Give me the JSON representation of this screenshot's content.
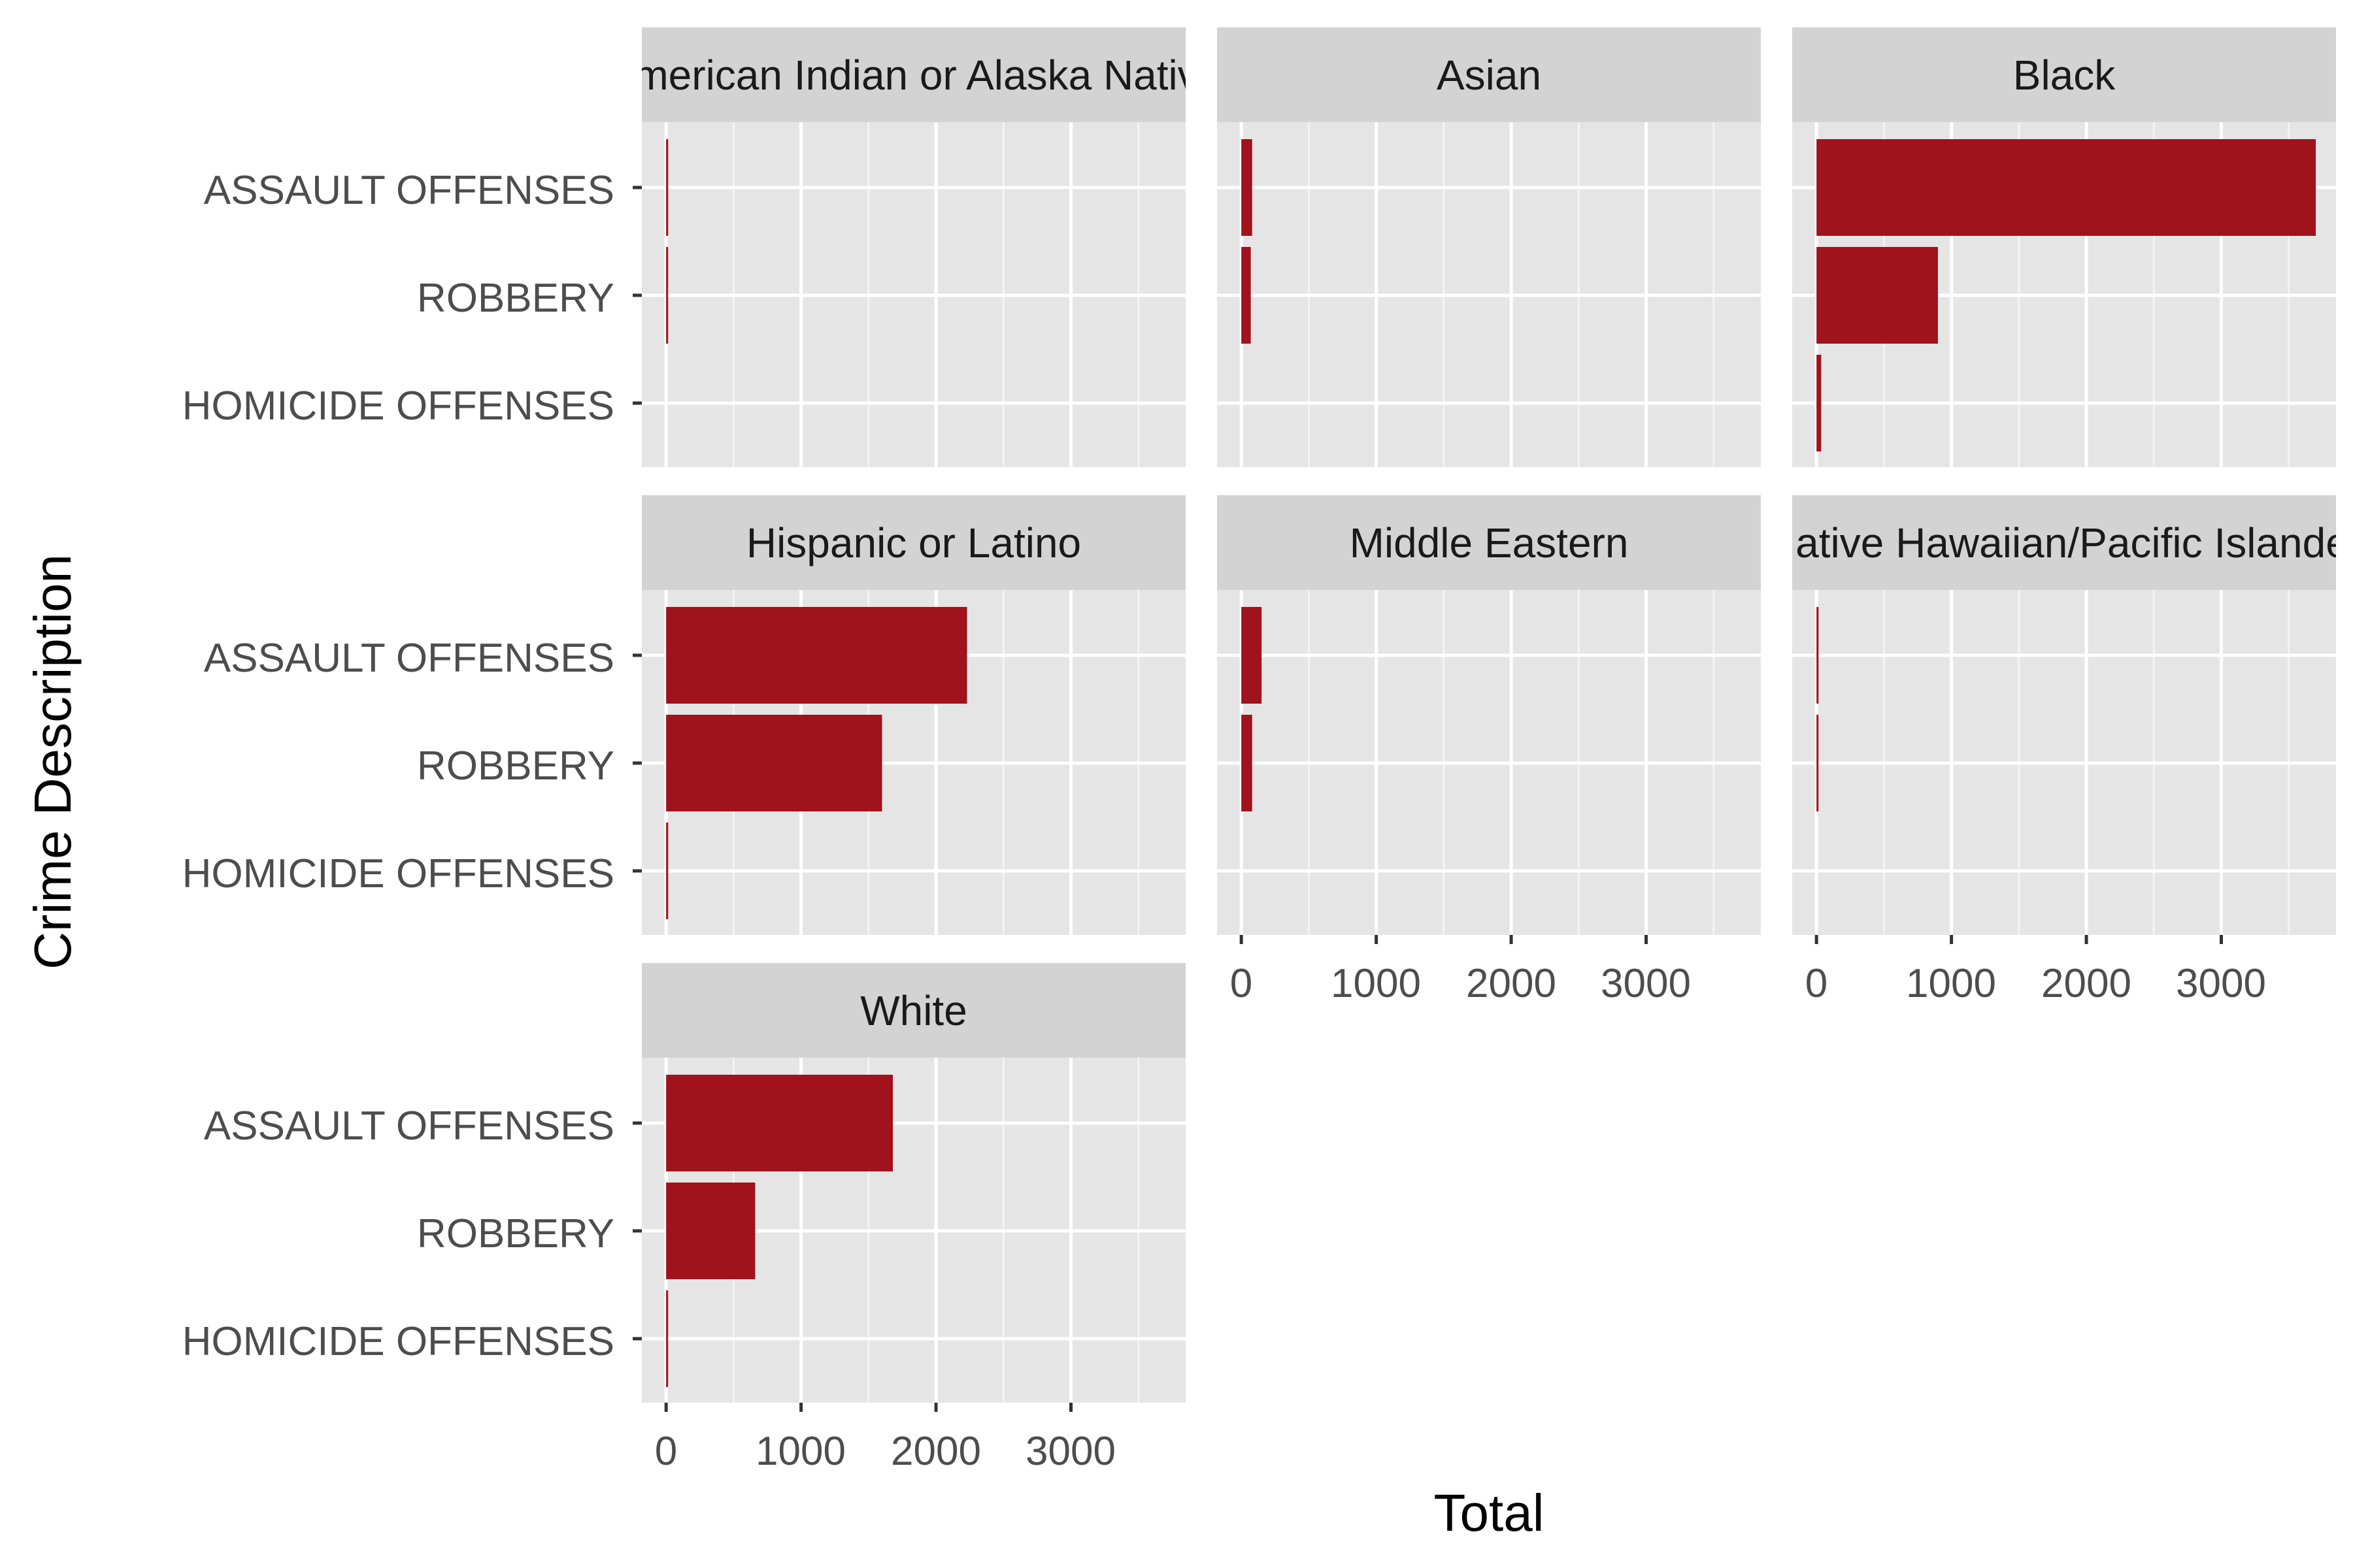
{
  "chart_data": {
    "type": "bar",
    "orientation": "horizontal",
    "layout": "facet_wrap",
    "ncol": 3,
    "xlabel": "Total",
    "ylabel": "Crime Description",
    "categories": [
      "ASSAULT OFFENSES",
      "ROBBERY",
      "HOMICIDE OFFENSES"
    ],
    "xlim": [
      -180,
      3850
    ],
    "xticks": [
      0,
      1000,
      2000,
      3000
    ],
    "xtick_labels": [
      "0",
      "1000",
      "2000",
      "3000"
    ],
    "grid": true,
    "bar_color": "#a0121c",
    "panel_background": "#e5e5e5",
    "strip_background": "#d3d3d3",
    "facets": [
      {
        "name": "American Indian or Alaska Native",
        "values": [
          15,
          8,
          0
        ]
      },
      {
        "name": "Asian",
        "values": [
          80,
          70,
          0
        ]
      },
      {
        "name": "Black",
        "values": [
          3700,
          900,
          35
        ]
      },
      {
        "name": "Hispanic or Latino",
        "values": [
          2230,
          1600,
          15
        ]
      },
      {
        "name": "Middle Eastern",
        "values": [
          150,
          80,
          0
        ]
      },
      {
        "name": "Native Hawaiian/Pacific Islander",
        "values": [
          15,
          10,
          0
        ]
      },
      {
        "name": "White",
        "values": [
          1680,
          660,
          10
        ]
      }
    ]
  }
}
